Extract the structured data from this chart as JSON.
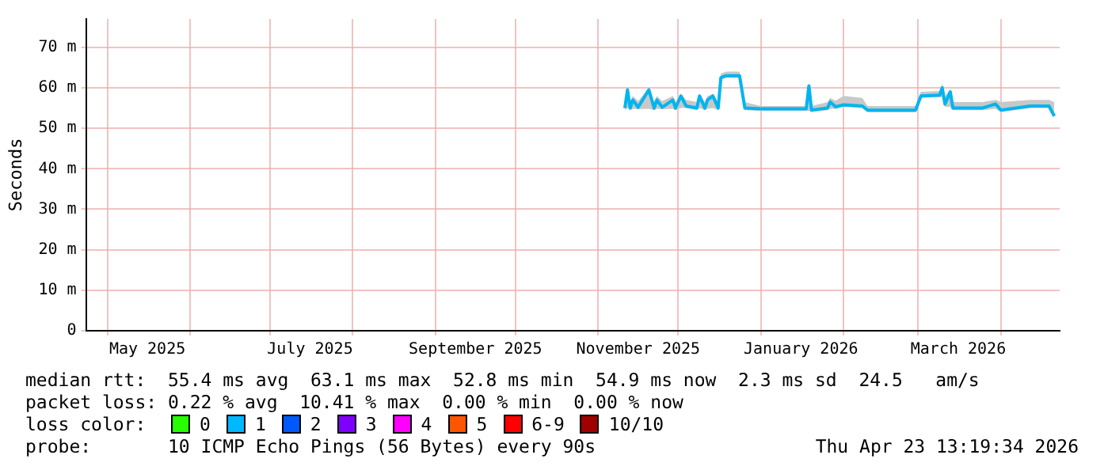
{
  "chart_data": {
    "type": "line",
    "ylabel": "Seconds",
    "x": [
      "2025-11-11",
      "2025-11-12",
      "2025-11-13",
      "2025-11-14",
      "2025-11-16",
      "2025-11-20",
      "2025-11-22",
      "2025-11-23",
      "2025-11-25",
      "2025-11-29",
      "2025-11-30",
      "2025-12-02",
      "2025-12-04",
      "2025-12-08",
      "2025-12-09",
      "2025-12-11",
      "2025-12-12",
      "2025-12-14",
      "2025-12-16",
      "2025-12-17",
      "2025-12-19",
      "2025-12-24",
      "2025-12-26",
      "2026-01-01",
      "2026-01-11",
      "2026-01-18",
      "2026-01-19",
      "2026-01-20",
      "2026-01-26",
      "2026-01-27",
      "2026-01-29",
      "2026-02-01",
      "2026-02-08",
      "2026-02-10",
      "2026-02-19",
      "2026-02-28",
      "2026-03-02",
      "2026-03-09",
      "2026-03-10",
      "2026-03-11",
      "2026-03-13",
      "2026-03-14",
      "2026-03-25",
      "2026-03-30",
      "2026-04-01",
      "2026-04-12",
      "2026-04-19",
      "2026-04-21"
    ],
    "series": [
      {
        "color": "#00b4f0",
        "values": [
          55,
          59.5,
          55,
          57,
          55.2,
          59.5,
          55,
          57,
          55.2,
          57,
          55,
          58,
          55.5,
          55,
          58,
          55,
          57,
          58,
          55,
          62.5,
          63,
          63,
          55,
          54.8,
          54.8,
          54.8,
          60.5,
          54.5,
          55,
          56.5,
          55.3,
          55.8,
          55.5,
          54.5,
          54.5,
          54.5,
          58,
          58.2,
          60,
          56,
          59,
          55,
          55,
          56,
          54.5,
          55.5,
          55.5,
          53
        ],
        "lower": [
          54.5,
          55,
          54.5,
          54.8,
          54.7,
          54.8,
          54.5,
          54.8,
          54.7,
          54.8,
          54.5,
          55,
          55,
          54.5,
          55,
          54.5,
          54.8,
          55,
          54.5,
          62,
          62.5,
          62.5,
          54.5,
          54.3,
          54.3,
          54.3,
          54.3,
          54,
          54.5,
          54.8,
          54.8,
          55.3,
          55,
          54,
          54,
          54,
          57.5,
          57.7,
          57.7,
          55.3,
          55.3,
          54.5,
          54.5,
          54.8,
          54,
          55,
          55,
          52.8
        ],
        "upper": [
          56.5,
          60,
          56.5,
          58,
          56.7,
          60,
          56.5,
          58,
          56.7,
          58,
          56.5,
          58.5,
          57,
          56.5,
          58.5,
          56.5,
          58,
          58.5,
          56.5,
          63.5,
          64,
          64,
          56.5,
          55.5,
          55.5,
          55.5,
          61,
          55.5,
          56.5,
          57.5,
          56.8,
          58,
          57.5,
          55.5,
          55.5,
          55.5,
          59,
          59.2,
          61,
          58,
          59.5,
          56.5,
          56.5,
          57,
          56.5,
          57,
          57,
          56.5
        ]
      }
    ],
    "xlim": [
      "2025-04-23",
      "2026-04-23"
    ],
    "xticks": [
      {
        "value": "2025-05-01",
        "label": null
      },
      {
        "value": "2025-05-16",
        "label": "May 2025"
      },
      {
        "value": "2025-06-01",
        "label": null
      },
      {
        "value": "2025-07-01",
        "label": null
      },
      {
        "value": "2025-07-16",
        "label": "July 2025"
      },
      {
        "value": "2025-08-01",
        "label": null
      },
      {
        "value": "2025-09-01",
        "label": null
      },
      {
        "value": "2025-09-16",
        "label": "September 2025"
      },
      {
        "value": "2025-10-01",
        "label": null
      },
      {
        "value": "2025-11-01",
        "label": null
      },
      {
        "value": "2025-11-16",
        "label": "November 2025"
      },
      {
        "value": "2025-12-01",
        "label": null
      },
      {
        "value": "2026-01-01",
        "label": null
      },
      {
        "value": "2026-01-16",
        "label": "January 2026"
      },
      {
        "value": "2026-02-01",
        "label": null
      },
      {
        "value": "2026-03-01",
        "label": null
      },
      {
        "value": "2026-03-16",
        "label": "March 2026"
      },
      {
        "value": "2026-04-01",
        "label": null
      }
    ],
    "ylim": [
      0,
      77
    ],
    "yticks": [
      0,
      {
        "value": 10,
        "label": "10 m"
      },
      {
        "value": 20,
        "label": "20 m"
      },
      {
        "value": 30,
        "label": "30 m"
      },
      {
        "value": 40,
        "label": "40 m"
      },
      {
        "value": 50,
        "label": "50 m"
      },
      {
        "value": 60,
        "label": "60 m"
      },
      {
        "value": 70,
        "label": "70 m"
      }
    ],
    "grid": true,
    "legend": false,
    "annotations": [
      "median rtt:  55.4 ms avg  63.1 ms max  52.8 ms min  54.9 ms now  2.3 ms sd  24.5   am/s",
      "packet loss: 0.22 % avg  10.41 % max  0.00 % min  0.00 % now",
      "loss color:",
      "0",
      "1",
      "2",
      "3",
      "4",
      "5",
      "6-9",
      "10/10",
      "probe:       10 ICMP Echo Pings (56 Bytes) every 90s",
      "Thu Apr 23 13:19:34 2026"
    ]
  }
}
